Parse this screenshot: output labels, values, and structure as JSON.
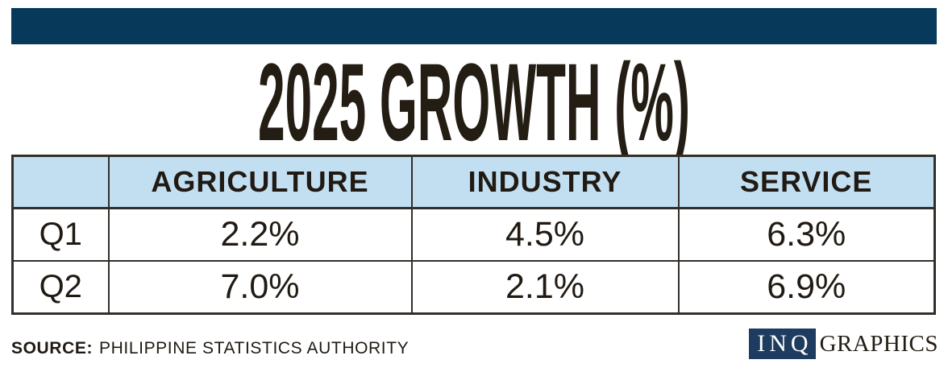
{
  "theme": {
    "navy": "#06395a",
    "logo-navy": "#1e3c60",
    "header-blue": "#c2dff2",
    "ink": "#201a13",
    "title-ink": "#231d14",
    "line": "#332e29"
  },
  "title": {
    "text": "2025 GROWTH (%)"
  },
  "table": {
    "columns": [
      "",
      "AGRICULTURE",
      "INDUSTRY",
      "SERVICE"
    ],
    "rows": [
      {
        "label": "Q1",
        "values": [
          "2.2%",
          "4.5%",
          "6.3%"
        ]
      },
      {
        "label": "Q2",
        "values": [
          "7.0%",
          "2.1%",
          "6.9%"
        ]
      }
    ]
  },
  "chart_data": {
    "type": "table",
    "title": "2025 GROWTH (%)",
    "categories": [
      "AGRICULTURE",
      "INDUSTRY",
      "SERVICE"
    ],
    "series": [
      {
        "name": "Q1",
        "values": [
          2.2,
          4.5,
          6.3
        ]
      },
      {
        "name": "Q2",
        "values": [
          7.0,
          2.1,
          6.9
        ]
      }
    ],
    "unit": "%",
    "source": "PHILIPPINE STATISTICS AUTHORITY"
  },
  "footer": {
    "source_label": "SOURCE:",
    "source_text": "PHILIPPINE STATISTICS AUTHORITY",
    "logo_inq": "INQ",
    "logo_graphics": "GRAPHICS"
  }
}
